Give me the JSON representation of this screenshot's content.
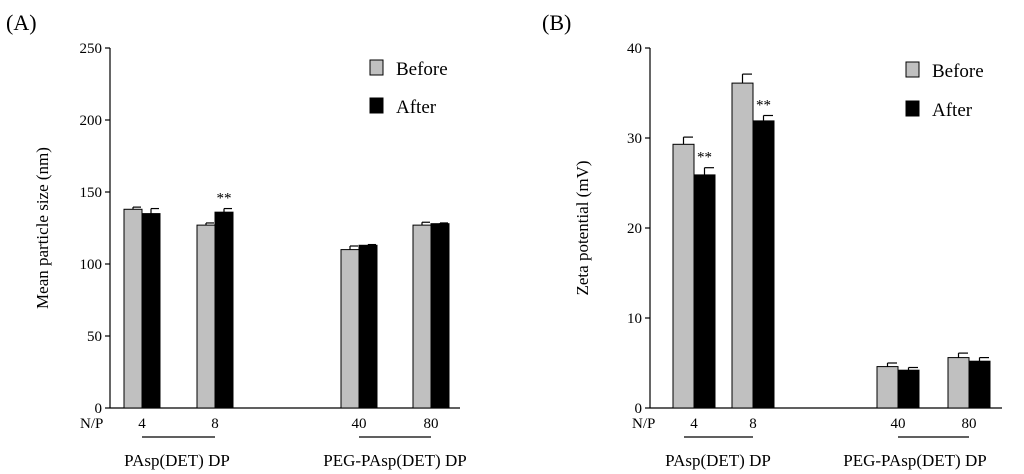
{
  "colors": {
    "before": "#c0c0c0",
    "after": "#000000",
    "axis": "#000000"
  },
  "chart_data": [
    {
      "type": "bar",
      "panel": "(A)",
      "ylabel": "Mean particle size (nm)",
      "ylim": [
        0,
        250
      ],
      "yticks": [
        0,
        50,
        100,
        150,
        200,
        250
      ],
      "np_label": "N/P",
      "categories": [
        "4",
        "8",
        "40",
        "80"
      ],
      "groups": [
        {
          "name": "PAsp(DET) DP",
          "categories": [
            "4",
            "8"
          ]
        },
        {
          "name": "PEG-PAsp(DET) DP",
          "categories": [
            "40",
            "80"
          ]
        }
      ],
      "legend": [
        "Before",
        "After"
      ],
      "series": [
        {
          "name": "Before",
          "values": [
            138,
            127,
            110,
            127
          ],
          "errors": [
            1.5,
            1.5,
            2.5,
            2
          ]
        },
        {
          "name": "After",
          "values": [
            135,
            136,
            113,
            128
          ],
          "errors": [
            3.5,
            2.5,
            0.5,
            0.5
          ]
        }
      ],
      "significance": [
        {
          "category": "8",
          "series": "After",
          "label": "**"
        }
      ]
    },
    {
      "type": "bar",
      "panel": "(B)",
      "ylabel": "Zeta potential (mV)",
      "ylim": [
        0,
        40
      ],
      "yticks": [
        0,
        10,
        20,
        30,
        40
      ],
      "np_label": "N/P",
      "categories": [
        "4",
        "8",
        "40",
        "80"
      ],
      "groups": [
        {
          "name": "PAsp(DET) DP",
          "categories": [
            "4",
            "8"
          ]
        },
        {
          "name": "PEG-PAsp(DET) DP",
          "categories": [
            "40",
            "80"
          ]
        }
      ],
      "legend": [
        "Before",
        "After"
      ],
      "series": [
        {
          "name": "Before",
          "values": [
            29.3,
            36.1,
            4.6,
            5.6
          ],
          "errors": [
            0.8,
            1.0,
            0.4,
            0.5
          ]
        },
        {
          "name": "After",
          "values": [
            25.9,
            31.9,
            4.2,
            5.2
          ],
          "errors": [
            0.8,
            0.6,
            0.3,
            0.4
          ]
        }
      ],
      "significance": [
        {
          "category": "4",
          "series": "After",
          "label": "**"
        },
        {
          "category": "8",
          "series": "After",
          "label": "**"
        }
      ]
    }
  ]
}
